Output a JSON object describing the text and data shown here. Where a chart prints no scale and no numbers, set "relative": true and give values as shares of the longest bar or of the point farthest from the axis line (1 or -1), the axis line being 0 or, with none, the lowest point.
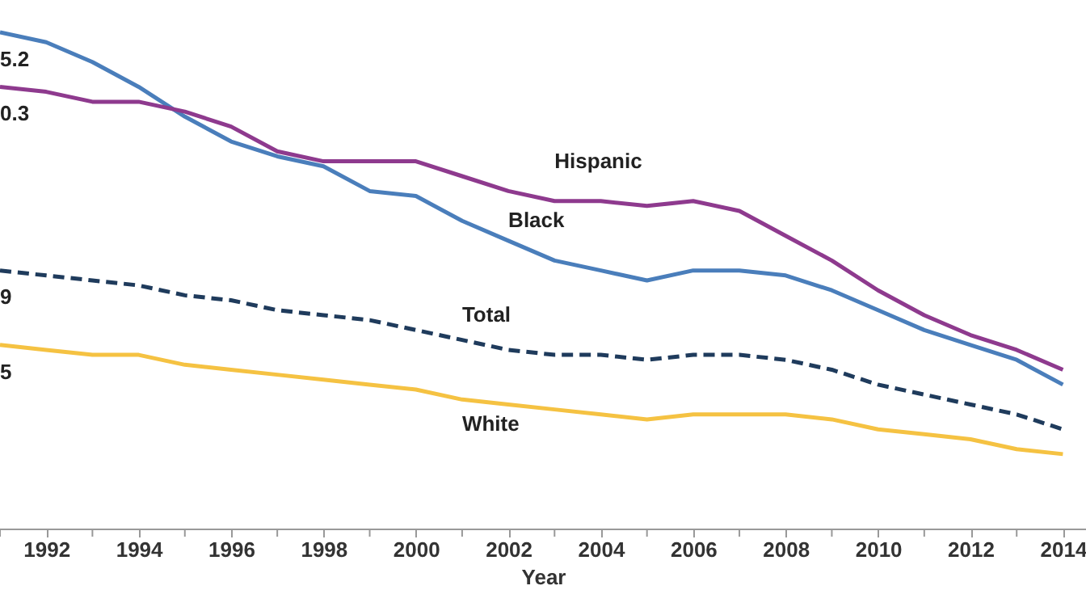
{
  "chart_data": {
    "type": "line",
    "xlabel": "Year",
    "relative": true,
    "x": [
      1991,
      1992,
      1993,
      1994,
      1995,
      1996,
      1997,
      1998,
      1999,
      2000,
      2001,
      2002,
      2003,
      2004,
      2005,
      2006,
      2007,
      2008,
      2009,
      2010,
      2011,
      2012,
      2013,
      2014
    ],
    "xlim": [
      1991,
      2014.5
    ],
    "xticks": [
      {
        "value": 1991,
        "label": null
      },
      1992,
      {
        "value": 1993,
        "label": null
      },
      1994,
      {
        "value": 1995,
        "label": null
      },
      1996,
      {
        "value": 1997,
        "label": null
      },
      1998,
      {
        "value": 1999,
        "label": null
      },
      2000,
      {
        "value": 2001,
        "label": null
      },
      2002,
      {
        "value": 2003,
        "label": null
      },
      2004,
      {
        "value": 2005,
        "label": null
      },
      2006,
      {
        "value": 2007,
        "label": null
      },
      2008,
      {
        "value": 2009,
        "label": null
      },
      2010,
      {
        "value": 2011,
        "label": null
      },
      2012,
      {
        "value": 2013,
        "label": null
      },
      2014
    ],
    "series": [
      {
        "name": "Black",
        "color": "#4a7ebb",
        "line_style": "solid",
        "values": [
          1.0,
          0.98,
          0.94,
          0.89,
          0.83,
          0.78,
          0.75,
          0.73,
          0.68,
          0.67,
          0.62,
          0.58,
          0.54,
          0.52,
          0.5,
          0.52,
          0.52,
          0.51,
          0.48,
          0.44,
          0.4,
          0.37,
          0.34,
          0.29
        ]
      },
      {
        "name": "Hispanic",
        "color": "#8e3a8e",
        "line_style": "solid",
        "values": [
          0.89,
          0.88,
          0.86,
          0.86,
          0.84,
          0.81,
          0.76,
          0.74,
          0.74,
          0.74,
          0.71,
          0.68,
          0.66,
          0.66,
          0.65,
          0.66,
          0.64,
          0.59,
          0.54,
          0.48,
          0.43,
          0.39,
          0.36,
          0.32
        ]
      },
      {
        "name": "Total",
        "color": "#1f3b5c",
        "line_style": "dashed",
        "values": [
          0.52,
          0.51,
          0.5,
          0.49,
          0.47,
          0.46,
          0.44,
          0.43,
          0.42,
          0.4,
          0.38,
          0.36,
          0.35,
          0.35,
          0.34,
          0.35,
          0.35,
          0.34,
          0.32,
          0.29,
          0.27,
          0.25,
          0.23,
          0.2
        ]
      },
      {
        "name": "White",
        "color": "#f5c242",
        "line_style": "solid",
        "values": [
          0.37,
          0.36,
          0.35,
          0.35,
          0.33,
          0.32,
          0.31,
          0.3,
          0.29,
          0.28,
          0.26,
          0.25,
          0.24,
          0.23,
          0.22,
          0.23,
          0.23,
          0.23,
          0.22,
          0.2,
          0.19,
          0.18,
          0.16,
          0.15
        ]
      }
    ],
    "annotations": [
      "5.2",
      "0.3",
      "9",
      "5"
    ]
  }
}
